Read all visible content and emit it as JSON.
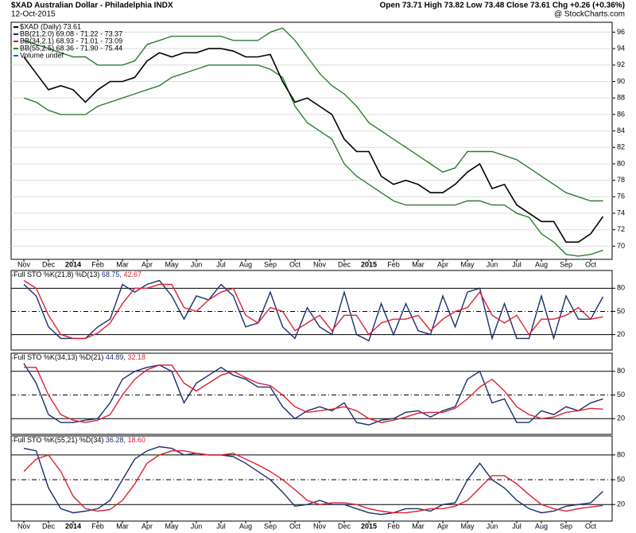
{
  "header": {
    "title": "$XAD Australian Dollar - Philadelphia INDX",
    "date": "12-Oct-2015",
    "quote": "Open 73.71  High 73.82  Low 73.48  Close 73.61  Chg +0.26 (+0.36%)",
    "credit": "@ StockCharts.com"
  },
  "chart_data": [
    {
      "type": "line",
      "categories": [
        "Nov",
        null,
        "Dec",
        null,
        "2014",
        null,
        "Feb",
        null,
        "Mar",
        null,
        "Apr",
        null,
        "May",
        null,
        "Jun",
        null,
        "Jul",
        null,
        "Aug",
        null,
        "Sep",
        null,
        "Oct",
        null,
        "Nov",
        null,
        "Dec",
        null,
        "2015",
        null,
        "Feb",
        null,
        "Mar",
        null,
        "Apr",
        null,
        "May",
        null,
        "Jun",
        null,
        "Jul",
        null,
        "Aug",
        null,
        "Sep",
        null,
        "Oct",
        null
      ],
      "legend": [
        {
          "text": "$XAD (Daily) 73.61",
          "color": "#000000"
        },
        {
          "text": "BB(21,2.0) 69.08 - 71.22 - 73.37",
          "color": "#1a237e"
        },
        {
          "text": "BB(34,2.1) 68.93 - 71.01 - 73.09",
          "color": "#cc1133"
        },
        {
          "text": "BB(55,2.5) 68.36 - 71.90 - 75.44",
          "color": "#2e7d32"
        },
        {
          "text": "Volume undef",
          "color": "#1f5fbf"
        }
      ],
      "series": [
        {
          "color": "#2e7d32",
          "values": [
            95,
            94.5,
            94,
            93.5,
            93,
            93,
            92,
            92,
            92,
            92.5,
            94.5,
            95,
            95.5,
            95.5,
            95.5,
            95.5,
            95.5,
            95,
            95,
            95,
            96,
            96.5,
            95,
            93,
            91,
            89.5,
            88.5,
            87,
            85,
            84,
            83,
            82,
            81,
            80,
            79,
            79.5,
            81.5,
            81.5,
            81.5,
            81,
            80.5,
            79.5,
            78.5,
            77.5,
            76.5,
            76,
            75.5,
            75.5
          ]
        },
        {
          "color": "#2e7d32",
          "values": [
            88,
            87.5,
            86.5,
            86,
            86,
            86,
            87,
            87.5,
            88,
            88.5,
            89,
            89.5,
            90.5,
            91,
            91.5,
            92,
            92,
            92,
            92,
            92,
            91.5,
            90.5,
            87,
            85,
            84,
            83,
            80,
            78.5,
            77.5,
            76.5,
            75.5,
            75,
            75,
            75,
            75,
            75,
            75.5,
            75.5,
            75,
            75,
            74,
            73.5,
            71.5,
            70.5,
            69,
            68.8,
            69,
            69.5
          ]
        },
        {
          "color": "#000000",
          "values": [
            93,
            91,
            89,
            89.5,
            89,
            87.5,
            89,
            90,
            90,
            90.5,
            92.5,
            93.5,
            93,
            93.5,
            93.5,
            94,
            94,
            93.7,
            93,
            93,
            93.3,
            90,
            87.5,
            88,
            87,
            86,
            83,
            81.5,
            81.5,
            78.5,
            77.5,
            78,
            77.5,
            76.5,
            76.5,
            77.5,
            79,
            80,
            77,
            77.5,
            75,
            74,
            73,
            73,
            70.5,
            70.5,
            71.5,
            73.6
          ]
        }
      ],
      "ylim": [
        68.4,
        97.2
      ],
      "yticks": [
        70,
        72,
        74,
        76,
        78,
        80,
        82,
        84,
        86,
        88,
        90,
        92,
        94,
        96
      ],
      "grid": true
    },
    {
      "type": "line",
      "title": "Full STO %K(21,8) %D(13)",
      "readout": [
        {
          "text": "68.75,",
          "color": "#1a2f6e"
        },
        {
          "text": "42.67",
          "color": "#dd2233"
        }
      ],
      "series": [
        {
          "color": "#1a2f6e",
          "values": [
            85,
            70,
            30,
            15,
            15,
            15,
            30,
            40,
            85,
            75,
            85,
            90,
            70,
            40,
            70,
            65,
            85,
            70,
            30,
            35,
            75,
            30,
            15,
            55,
            30,
            20,
            75,
            20,
            12,
            60,
            20,
            60,
            25,
            20,
            70,
            30,
            75,
            80,
            15,
            60,
            15,
            15,
            70,
            15,
            70,
            40,
            40,
            69
          ]
        },
        {
          "color": "#dd2233",
          "values": [
            90,
            80,
            45,
            20,
            15,
            15,
            22,
            35,
            60,
            80,
            80,
            85,
            85,
            55,
            50,
            65,
            75,
            80,
            45,
            35,
            55,
            50,
            25,
            35,
            45,
            25,
            45,
            45,
            20,
            35,
            40,
            40,
            45,
            25,
            40,
            50,
            55,
            75,
            45,
            35,
            45,
            20,
            40,
            40,
            45,
            55,
            40,
            43
          ]
        }
      ],
      "ylim": [
        0,
        103
      ],
      "yticks": [
        20,
        50,
        80
      ]
    },
    {
      "type": "line",
      "title": "Full STO %K(34,13) %D(21)",
      "readout": [
        {
          "text": "44.89,",
          "color": "#1a2f6e"
        },
        {
          "text": "32.18",
          "color": "#dd2233"
        }
      ],
      "series": [
        {
          "color": "#1a2f6e",
          "values": [
            90,
            65,
            25,
            15,
            15,
            18,
            20,
            40,
            70,
            80,
            85,
            88,
            80,
            40,
            65,
            75,
            85,
            75,
            70,
            60,
            60,
            35,
            20,
            30,
            35,
            30,
            40,
            15,
            12,
            18,
            20,
            28,
            30,
            22,
            30,
            35,
            70,
            80,
            40,
            45,
            15,
            15,
            30,
            25,
            35,
            30,
            40,
            45
          ]
        },
        {
          "color": "#dd2233",
          "values": [
            85,
            85,
            50,
            25,
            18,
            15,
            18,
            25,
            50,
            70,
            82,
            88,
            88,
            65,
            55,
            65,
            75,
            80,
            72,
            65,
            62,
            50,
            35,
            28,
            30,
            32,
            35,
            30,
            20,
            15,
            18,
            22,
            27,
            28,
            28,
            33,
            45,
            60,
            70,
            55,
            35,
            25,
            20,
            22,
            28,
            30,
            33,
            32
          ]
        }
      ],
      "ylim": [
        0,
        103
      ],
      "yticks": [
        20,
        50,
        80
      ]
    },
    {
      "type": "line",
      "title": "Full STO %K(55,21) %D(34)",
      "readout": [
        {
          "text": "36.28,",
          "color": "#1a2f6e"
        },
        {
          "text": "18.60",
          "color": "#dd2233"
        }
      ],
      "categories": [
        "Nov",
        null,
        "Dec",
        null,
        "2014",
        null,
        "Feb",
        null,
        "Mar",
        null,
        "Apr",
        null,
        "May",
        null,
        "Jun",
        null,
        "Jul",
        null,
        "Aug",
        null,
        "Sep",
        null,
        "Oct",
        null,
        "Nov",
        null,
        "Dec",
        null,
        "2015",
        null,
        "Feb",
        null,
        "Mar",
        null,
        "Apr",
        null,
        "May",
        null,
        "Jun",
        null,
        "Jul",
        null,
        "Aug",
        null,
        "Sep",
        null,
        "Oct",
        null
      ],
      "series": [
        {
          "color": "#1a2f6e",
          "values": [
            88,
            85,
            40,
            15,
            10,
            12,
            15,
            25,
            50,
            75,
            85,
            90,
            88,
            80,
            82,
            80,
            80,
            78,
            70,
            60,
            50,
            35,
            18,
            20,
            25,
            20,
            20,
            15,
            10,
            8,
            10,
            15,
            15,
            12,
            20,
            22,
            50,
            70,
            50,
            40,
            25,
            15,
            10,
            12,
            18,
            20,
            22,
            36
          ]
        },
        {
          "color": "#dd2233",
          "values": [
            60,
            75,
            80,
            60,
            30,
            15,
            12,
            14,
            25,
            45,
            70,
            80,
            85,
            85,
            82,
            80,
            80,
            82,
            75,
            68,
            60,
            50,
            38,
            25,
            20,
            22,
            22,
            20,
            15,
            12,
            10,
            10,
            12,
            15,
            15,
            18,
            25,
            40,
            55,
            55,
            45,
            32,
            20,
            15,
            12,
            15,
            17,
            19
          ]
        }
      ],
      "ylim": [
        0,
        103
      ],
      "yticks": [
        20,
        50,
        80
      ]
    }
  ]
}
